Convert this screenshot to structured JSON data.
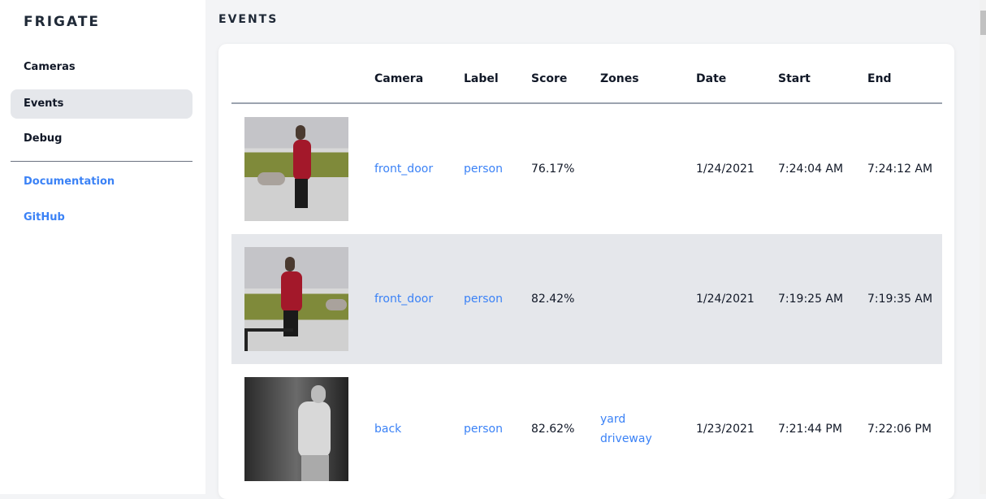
{
  "sidebar": {
    "brand": "FRIGATE",
    "items": [
      {
        "label": "Cameras"
      },
      {
        "label": "Events",
        "active": true
      },
      {
        "label": "Debug"
      }
    ],
    "links": [
      {
        "label": "Documentation"
      },
      {
        "label": "GitHub"
      }
    ]
  },
  "page": {
    "title": "EVENTS"
  },
  "table": {
    "headers": [
      "Camera",
      "Label",
      "Score",
      "Zones",
      "Date",
      "Start",
      "End"
    ],
    "rows": [
      {
        "camera": "front_door",
        "label": "person",
        "score": "76.17%",
        "zones": [
          "",
          ""
        ],
        "date": "1/24/2021",
        "start": "7:24:04 AM",
        "end": "7:24:12 AM"
      },
      {
        "camera": "front_door",
        "label": "person",
        "score": "82.42%",
        "zones": [
          "",
          ""
        ],
        "date": "1/24/2021",
        "start": "7:19:25 AM",
        "end": "7:19:35 AM"
      },
      {
        "camera": "back",
        "label": "person",
        "score": "82.62%",
        "zones": [
          "yard",
          "driveway"
        ],
        "date": "1/23/2021",
        "start": "7:21:44 PM",
        "end": "7:22:06 PM"
      }
    ]
  },
  "colors": {
    "accent": "#3b82f6",
    "active_bg": "#e5e7eb",
    "page_bg": "#f3f4f6"
  }
}
